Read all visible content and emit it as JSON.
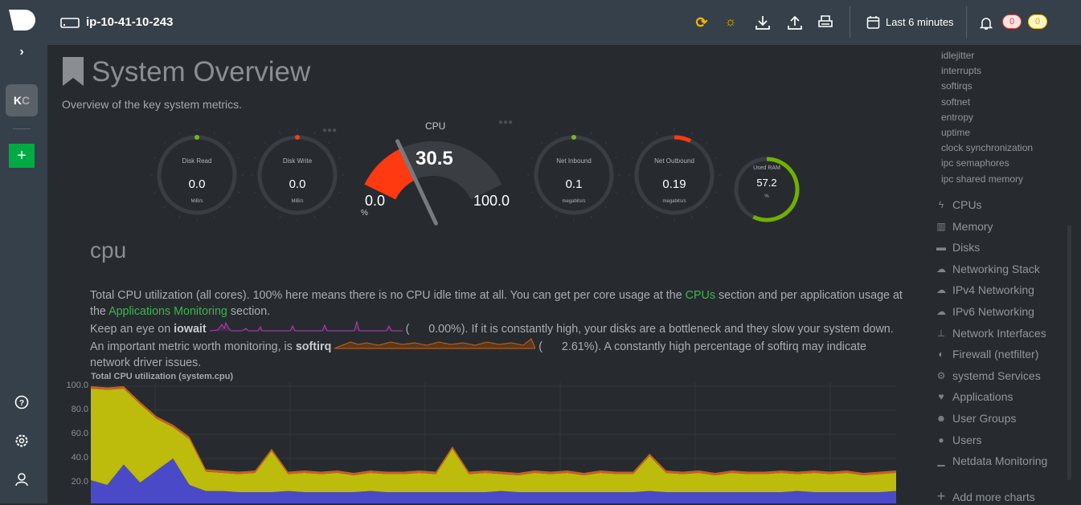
{
  "header": {
    "hostname": "ip-10-41-10-243",
    "time_range": "Last 6 minutes",
    "alerts_critical": "0",
    "alerts_warning": "0",
    "icons": [
      "sync-alert-icon",
      "lightbulb-icon",
      "download-icon",
      "upload-icon",
      "print-icon",
      "calendar-icon",
      "bell-icon"
    ]
  },
  "left_sidebar": {
    "avatar_initials_1": "K",
    "avatar_initials_2": "C",
    "add_label": "+",
    "expand": "›"
  },
  "page": {
    "title": "System Overview",
    "subtitle": "Overview of the key system metrics."
  },
  "gauges": {
    "disk_read": {
      "label": "Disk Read",
      "value": "0.0",
      "unit": "MiB/s"
    },
    "disk_write": {
      "label": "Disk Write",
      "value": "0.0",
      "unit": "MiB/s"
    },
    "cpu": {
      "label": "CPU",
      "value": "30.5",
      "min": "0.0",
      "max": "100.0",
      "unit": "%",
      "percent": 30.5
    },
    "net_inbound": {
      "label": "Net Inbound",
      "value": "0.1",
      "unit": "megabits/s"
    },
    "net_outbound": {
      "label": "Net Outbound",
      "value": "0.19",
      "unit": "megabits/s"
    },
    "used_ram": {
      "label": "Used RAM",
      "value": "57.2",
      "unit": "%",
      "percent": 57.2
    }
  },
  "section": {
    "title": "cpu",
    "p1a": "Total CPU utilization (all cores). 100% here means there is no CPU idle time at all. You can get per core usage at the ",
    "p1_link1": "CPUs",
    "p1b": " section and per application usage at the ",
    "p1_link2": "Applications Monitoring",
    "p1c": " section.",
    "p2a": "Keep an eye on ",
    "p2_bold": "iowait",
    "p2_value": "0.00%",
    "p2b": "). If it is constantly high, your disks are a bottleneck and they slow your system down.",
    "p3a": "An important metric worth monitoring, is ",
    "p3_bold": "softirq",
    "p3_value": "2.61%",
    "p3b": "). A constantly high percentage of softirq may indicate network driver issues."
  },
  "chart_data": {
    "type": "area",
    "title": "Total CPU utilization (system.cpu)",
    "stacked": true,
    "ylim": [
      0,
      100
    ],
    "yticks": [
      "100.0",
      "80.0",
      "60.0",
      "40.0",
      "20.0"
    ],
    "grid": true,
    "series": [
      {
        "color": "#4a4ac8",
        "values": [
          22,
          18,
          35,
          20,
          30,
          40,
          18,
          13,
          13,
          12,
          12,
          12,
          13,
          12,
          12,
          12,
          12,
          13,
          12,
          12,
          12,
          12,
          12,
          12,
          12,
          13,
          12,
          12,
          12,
          12,
          12,
          12,
          12,
          12,
          13,
          12,
          12,
          12,
          12,
          12,
          12,
          12,
          12,
          13,
          12,
          12,
          12,
          12,
          12,
          13
        ]
      },
      {
        "color": "#bdbb0c",
        "values": [
          76,
          79,
          63,
          65,
          43,
          26,
          38,
          16,
          15,
          15,
          16,
          34,
          14,
          16,
          15,
          16,
          14,
          15,
          15,
          15,
          16,
          15,
          36,
          15,
          16,
          14,
          14,
          16,
          15,
          16,
          14,
          16,
          15,
          15,
          29,
          16,
          15,
          16,
          14,
          16,
          15,
          15,
          16,
          14,
          16,
          15,
          16,
          14,
          15,
          15
        ]
      },
      {
        "color": "#c8601e",
        "values": [
          2,
          2,
          2,
          2,
          2,
          2,
          2,
          2,
          2,
          2,
          2,
          2,
          2,
          2,
          2,
          2,
          2,
          2,
          2,
          2,
          2,
          2,
          2,
          2,
          2,
          2,
          2,
          2,
          2,
          2,
          2,
          2,
          2,
          2,
          2,
          2,
          2,
          2,
          2,
          2,
          2,
          2,
          2,
          2,
          2,
          2,
          2,
          2,
          2,
          2
        ]
      }
    ]
  },
  "right_menu": {
    "subitems": [
      "idlejitter",
      "interrupts",
      "softirqs",
      "softnet",
      "entropy",
      "uptime",
      "clock synchronization",
      "ipc semaphores",
      "ipc shared memory"
    ],
    "items": [
      {
        "icon": "bolt-icon",
        "glyph": "ϟ",
        "label": "CPUs"
      },
      {
        "icon": "memory-icon",
        "glyph": "▥",
        "label": "Memory"
      },
      {
        "icon": "disk-icon",
        "glyph": "▬",
        "label": "Disks"
      },
      {
        "icon": "cloud-icon",
        "glyph": "☁",
        "label": "Networking Stack"
      },
      {
        "icon": "cloud-icon",
        "glyph": "☁",
        "label": "IPv4 Networking"
      },
      {
        "icon": "cloud-icon",
        "glyph": "☁",
        "label": "IPv6 Networking"
      },
      {
        "icon": "sitemap-icon",
        "glyph": "⊥",
        "label": "Network Interfaces"
      },
      {
        "icon": "shield-icon",
        "glyph": "◐",
        "label": "Firewall (netfilter)"
      },
      {
        "icon": "gears-icon",
        "glyph": "⚙",
        "label": "systemd Services"
      },
      {
        "icon": "heartbeat-icon",
        "glyph": "♥",
        "label": "Applications"
      },
      {
        "icon": "users-icon",
        "glyph": "☻",
        "label": "User Groups"
      },
      {
        "icon": "user-icon",
        "glyph": "●",
        "label": "Users"
      },
      {
        "icon": "chart-icon",
        "glyph": "▁",
        "label": "Netdata Monitoring"
      }
    ],
    "add_more": "Add more charts"
  }
}
